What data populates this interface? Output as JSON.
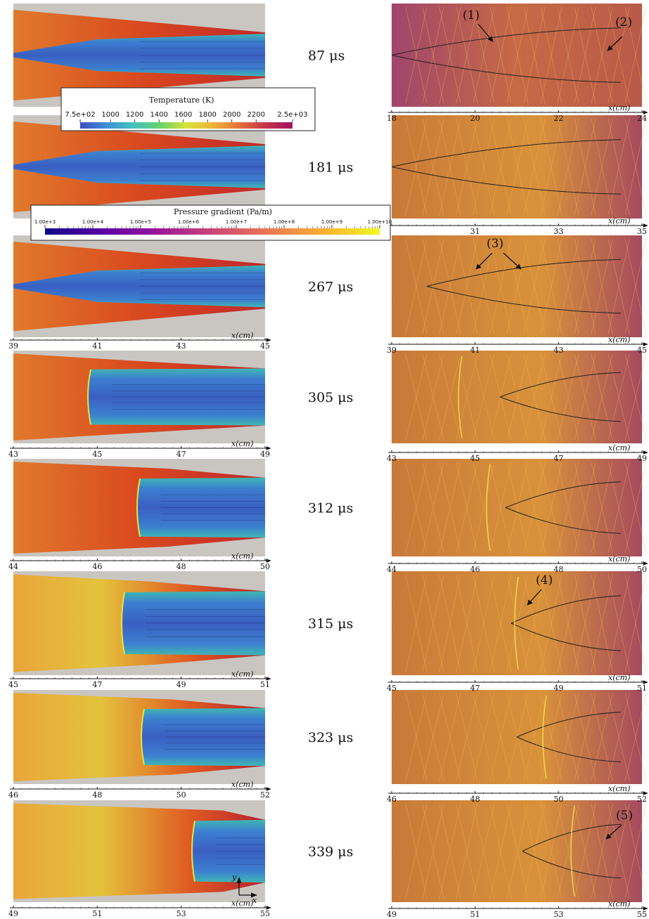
{
  "time_labels": [
    "87 μs",
    "181 μs",
    "267 μs",
    "305 μs",
    "312 μs",
    "315 μs",
    "323 μs",
    "339 μs"
  ],
  "axis_unit": "x(cm)",
  "left_axes": [
    {
      "ticks": [],
      "unit": ""
    },
    {
      "ticks": [],
      "unit": ""
    },
    {
      "ticks": [
        "39",
        "41",
        "43",
        "45"
      ],
      "unit": "x(cm)"
    },
    {
      "ticks": [
        "43",
        "45",
        "47",
        "49"
      ],
      "unit": "x(cm)"
    },
    {
      "ticks": [
        "44",
        "46",
        "48",
        "50"
      ],
      "unit": "x(cm)"
    },
    {
      "ticks": [
        "45",
        "47",
        "49",
        "51"
      ],
      "unit": "x(cm)"
    },
    {
      "ticks": [
        "46",
        "48",
        "50",
        "52"
      ],
      "unit": "x(cm)"
    },
    {
      "ticks": [
        "49",
        "51",
        "53",
        "55"
      ],
      "unit": "x(cm)"
    }
  ],
  "right_axes": [
    {
      "ticks": [
        "18",
        "20",
        "22",
        "24"
      ],
      "unit": "x(cm)"
    },
    {
      "ticks": [
        "",
        "31",
        "33",
        "35"
      ],
      "unit": "x(cm)"
    },
    {
      "ticks": [
        "39",
        "41",
        "43",
        "45"
      ],
      "unit": "x(cm)"
    },
    {
      "ticks": [
        "43",
        "45",
        "47",
        "49"
      ],
      "unit": "x(cm)"
    },
    {
      "ticks": [
        "44",
        "46",
        "48",
        "50"
      ],
      "unit": "x(cm)"
    },
    {
      "ticks": [
        "45",
        "47",
        "49",
        "51"
      ],
      "unit": "x(cm)"
    },
    {
      "ticks": [
        "46",
        "48",
        "50",
        "52"
      ],
      "unit": "x(cm)"
    },
    {
      "ticks": [
        "49",
        "51",
        "53",
        "55"
      ],
      "unit": "x(cm)"
    }
  ],
  "temperature_colorbar": {
    "title": "Temperature (K)",
    "ticks": [
      "7.5e+02",
      "1000",
      "1200",
      "1400",
      "1600",
      "1800",
      "2000",
      "2200",
      "2.5e+03"
    ],
    "colors": [
      "#3b4cc0",
      "#3f8fd6",
      "#41c2c0",
      "#66d26a",
      "#d6e33a",
      "#f0b43a",
      "#e3713a",
      "#c2334a",
      "#a3135e"
    ]
  },
  "pressure_colorbar": {
    "title": "Pressure gradient (Pa/m)",
    "ticks": [
      "1.00e+3",
      "1.00e+4",
      "1.00e+5",
      "1.00e+6",
      "1.00e+7",
      "1.00e+8",
      "1.00e+9",
      "1.00e+10"
    ],
    "colors": [
      "#0d0887",
      "#5b02a3",
      "#9a179b",
      "#cb4678",
      "#eb7852",
      "#fbb32f",
      "#eff821"
    ]
  },
  "callouts": [
    "(1)",
    "(2)",
    "(3)",
    "(4)",
    "(5)"
  ],
  "coordinate_axes": {
    "y": "y",
    "x": "x"
  },
  "colors": {
    "background_gray": "#c9c6c1",
    "hot_red": "#d23a1f",
    "jet_blue": "#3c67c8",
    "plasma_bg": "#b45a45"
  }
}
